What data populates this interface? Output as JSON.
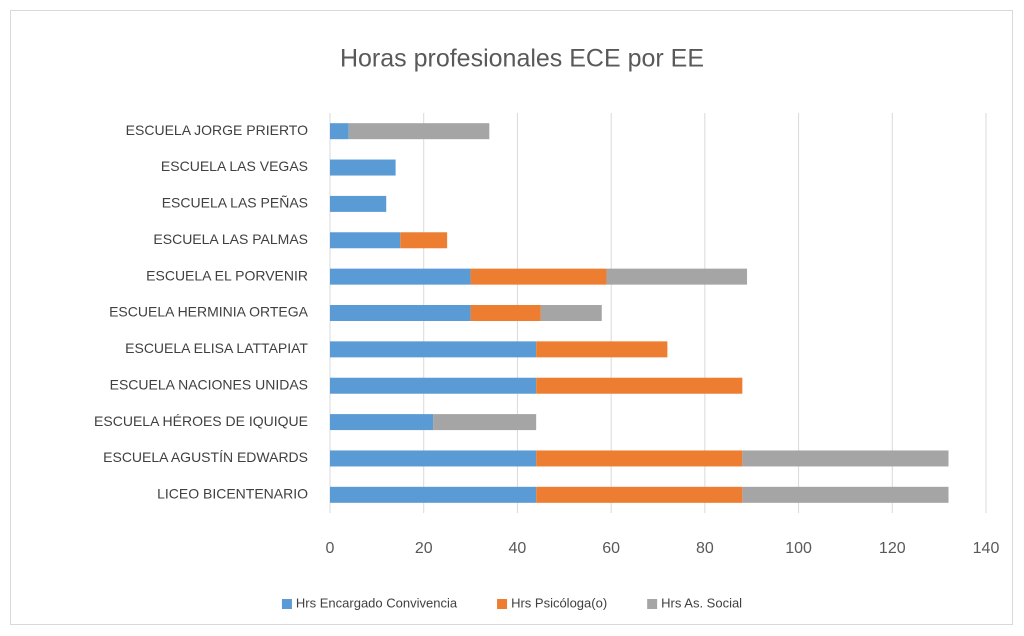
{
  "chart_data": {
    "type": "stacked-barh",
    "title": "Horas profesionales ECE por EE",
    "categories": [
      "ESCUELA JORGE PRIERTO",
      "ESCUELA LAS VEGAS",
      "ESCUELA LAS PEÑAS",
      "ESCUELA LAS PALMAS",
      "ESCUELA EL PORVENIR",
      "ESCUELA HERMINIA ORTEGA",
      "ESCUELA ELISA LATTAPIAT",
      "ESCUELA NACIONES UNIDAS",
      "ESCUELA HÉROES DE IQUIQUE",
      "ESCUELA AGUSTÍN EDWARDS",
      "LICEO BICENTENARIO"
    ],
    "series": [
      {
        "name": "Hrs Encargado Convivencia",
        "color": "#5b9bd5",
        "values": [
          4,
          14,
          12,
          15,
          30,
          30,
          44,
          44,
          22,
          44,
          44
        ]
      },
      {
        "name": "Hrs Psicóloga(o)",
        "color": "#ed7d31",
        "values": [
          0,
          0,
          0,
          10,
          29,
          15,
          28,
          44,
          0,
          44,
          44
        ]
      },
      {
        "name": "Hrs As. Social",
        "color": "#a5a5a5",
        "values": [
          30,
          0,
          0,
          0,
          30,
          13,
          0,
          0,
          22,
          44,
          44
        ]
      }
    ],
    "xlim": [
      0,
      140
    ],
    "xticks": [
      0,
      20,
      40,
      60,
      80,
      100,
      120,
      140
    ],
    "grid": true,
    "legend": "bottom"
  }
}
